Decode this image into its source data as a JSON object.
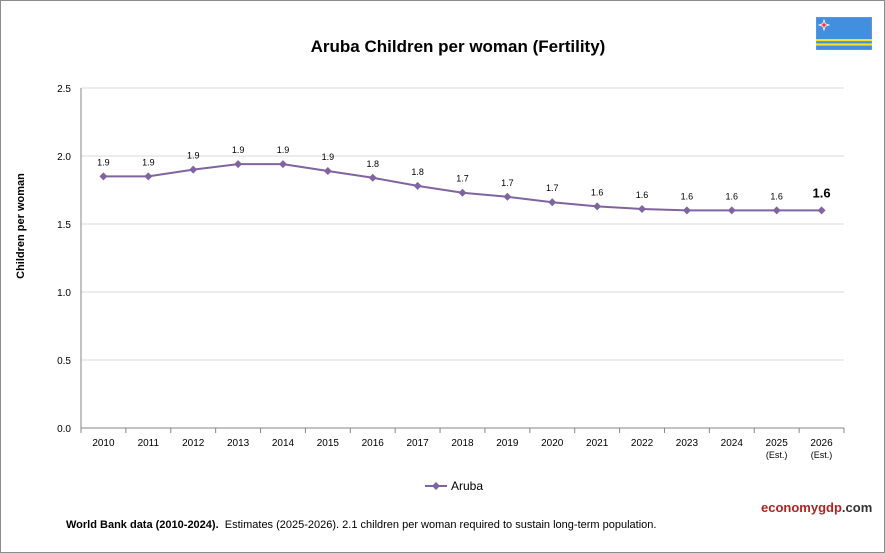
{
  "chart_data": {
    "type": "line",
    "title": "Aruba Children per woman (Fertility)",
    "ylabel": "Children per woman",
    "xlabel": "",
    "ylim": [
      0,
      2.5
    ],
    "yticks": [
      "0.0",
      "0.5",
      "1.0",
      "1.5",
      "2.0",
      "2.5"
    ],
    "grid": true,
    "legend_position": "bottom",
    "categories": [
      [
        "2010",
        ""
      ],
      [
        "2011",
        ""
      ],
      [
        "2012",
        ""
      ],
      [
        "2013",
        ""
      ],
      [
        "2014",
        ""
      ],
      [
        "2015",
        ""
      ],
      [
        "2016",
        ""
      ],
      [
        "2017",
        ""
      ],
      [
        "2018",
        ""
      ],
      [
        "2019",
        ""
      ],
      [
        "2020",
        ""
      ],
      [
        "2021",
        ""
      ],
      [
        "2022",
        ""
      ],
      [
        "2023",
        ""
      ],
      [
        "2024",
        ""
      ],
      [
        "2025",
        "(Est.)"
      ],
      [
        "2026",
        "(Est.)"
      ]
    ],
    "series": [
      {
        "name": "Aruba",
        "color": "#8064a2",
        "values": [
          1.85,
          1.85,
          1.9,
          1.94,
          1.94,
          1.89,
          1.84,
          1.78,
          1.73,
          1.7,
          1.66,
          1.63,
          1.61,
          1.6,
          1.6,
          1.6,
          1.6
        ],
        "labels": [
          "1.9",
          "1.9",
          "1.9",
          "1.9",
          "1.9",
          "1.9",
          "1.8",
          "1.8",
          "1.7",
          "1.7",
          "1.7",
          "1.6",
          "1.6",
          "1.6",
          "1.6",
          "1.6",
          "1.6"
        ]
      }
    ]
  },
  "legend": {
    "label": "Aruba"
  },
  "footer": {
    "source_bold": "World Bank data (2010-2024).",
    "note": "Estimates  (2025-2026).  2.1 children per woman required to sustain long-term population."
  },
  "brand": {
    "part1": "economy",
    "part2": "gdp",
    "part3": ".com"
  },
  "flag": {
    "blue": "#418fde",
    "yellow": "#fbe122",
    "red": "#ef3340",
    "icon": "aruba-flag-icon"
  }
}
